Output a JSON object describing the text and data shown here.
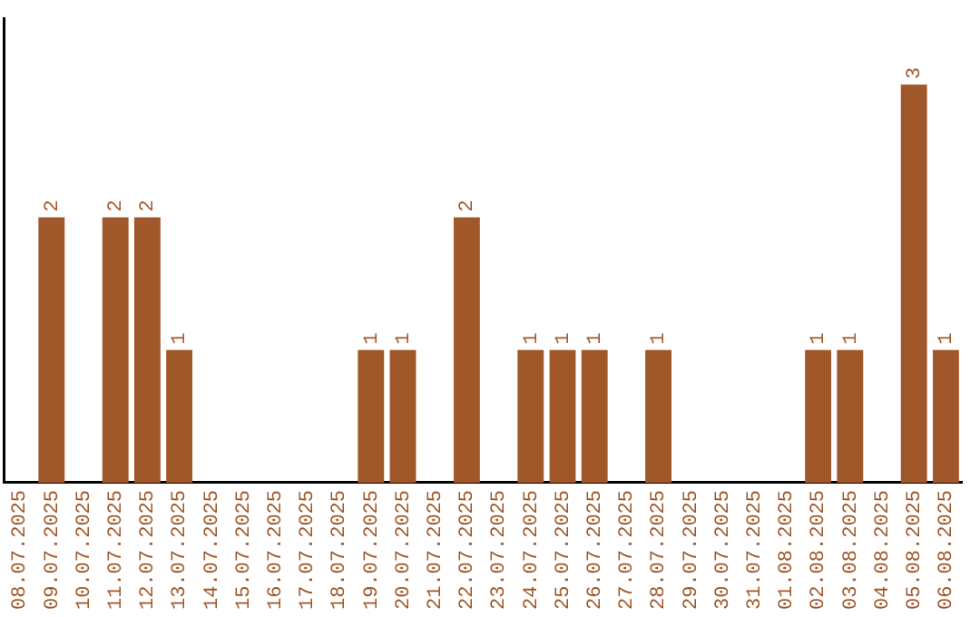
{
  "chart_data": {
    "type": "bar",
    "categories": [
      "08.07.2025",
      "09.07.2025",
      "10.07.2025",
      "11.07.2025",
      "12.07.2025",
      "13.07.2025",
      "14.07.2025",
      "15.07.2025",
      "16.07.2025",
      "17.07.2025",
      "18.07.2025",
      "19.07.2025",
      "20.07.2025",
      "21.07.2025",
      "22.07.2025",
      "23.07.2025",
      "24.07.2025",
      "25.07.2025",
      "26.07.2025",
      "27.07.2025",
      "28.07.2025",
      "29.07.2025",
      "30.07.2025",
      "31.07.2025",
      "01.08.2025",
      "02.08.2025",
      "03.08.2025",
      "04.08.2025",
      "05.08.2025",
      "06.08.2025"
    ],
    "values": [
      0,
      2,
      0,
      2,
      2,
      1,
      0,
      0,
      0,
      0,
      0,
      1,
      1,
      0,
      2,
      0,
      1,
      1,
      1,
      0,
      1,
      0,
      0,
      0,
      0,
      1,
      1,
      0,
      3,
      1
    ],
    "value_labels": [
      null,
      "2",
      null,
      "2",
      "2",
      "1",
      null,
      null,
      null,
      null,
      null,
      "1",
      "1",
      null,
      "2",
      null,
      "1",
      "1",
      "1",
      null,
      "1",
      null,
      null,
      null,
      null,
      "1",
      "1",
      null,
      "3",
      "1"
    ],
    "color": "#a0582a",
    "tick_labels": "x",
    "grid": false,
    "legend": false
  }
}
